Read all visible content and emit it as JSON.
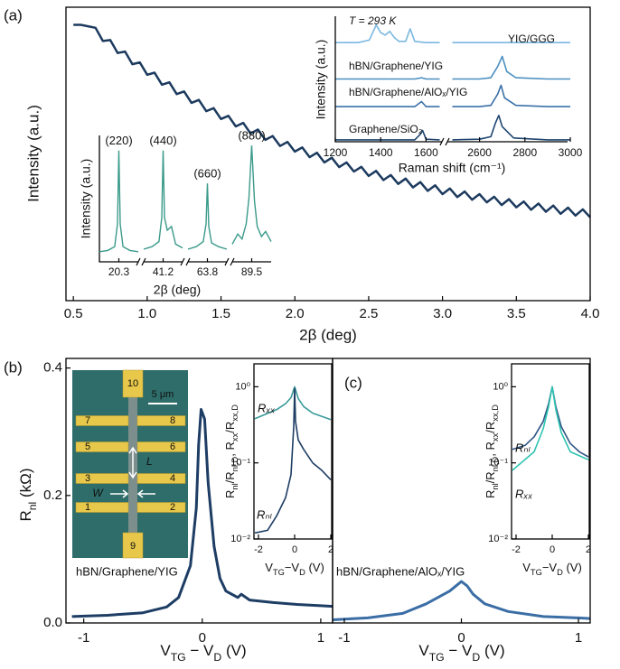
{
  "chart_data": [
    {
      "type": "line",
      "panel_label": "(a)",
      "xlabel": "2β (deg)",
      "ylabel": "Intensity (a.u.)",
      "color": "#1c3a5e",
      "xlim": [
        0.45,
        4.0
      ],
      "ylim": [
        0,
        100
      ],
      "xticks": [
        0.5,
        {
          "value": 1,
          "label": "1.0"
        },
        1.5,
        {
          "value": 2,
          "label": "2.0"
        },
        2.5,
        {
          "value": 3,
          "label": "3.0"
        },
        3.5,
        {
          "value": 4,
          "label": "4.0"
        }
      ],
      "x": [
        0.5,
        0.55,
        0.6,
        0.65,
        0.7,
        0.75,
        0.8,
        0.85,
        0.9,
        0.95,
        1.0,
        1.05,
        1.1,
        1.15,
        1.2,
        1.25,
        1.3,
        1.35,
        1.4,
        1.45,
        1.5,
        1.55,
        1.6,
        1.65,
        1.7,
        1.75,
        1.8,
        1.85,
        1.9,
        1.95,
        2.0,
        2.05,
        2.1,
        2.15,
        2.2,
        2.25,
        2.3,
        2.35,
        2.4,
        2.45,
        2.5,
        2.55,
        2.6,
        2.65,
        2.7,
        2.75,
        2.8,
        2.85,
        2.9,
        2.95,
        3.0,
        3.05,
        3.1,
        3.15,
        3.2,
        3.25,
        3.3,
        3.35,
        3.4,
        3.45,
        3.5,
        3.55,
        3.6,
        3.65,
        3.7,
        3.75,
        3.8,
        3.85,
        3.9,
        3.95,
        4.0
      ],
      "values": [
        94,
        94,
        93.5,
        93.0,
        88.5,
        88.8,
        84.4,
        84.9,
        80.6,
        81.2,
        77.0,
        77.7,
        73.6,
        74.4,
        70.4,
        71.3,
        67.4,
        68.4,
        64.6,
        65.6,
        61.9,
        63.0,
        59.4,
        60.6,
        57.0,
        58.3,
        54.8,
        56.1,
        52.7,
        54.1,
        50.8,
        52.2,
        48.9,
        50.4,
        47.1,
        48.7,
        45.5,
        47.1,
        44.0,
        45.6,
        42.5,
        44.2,
        41.1,
        42.8,
        39.8,
        41.6,
        38.6,
        40.4,
        37.4,
        39.3,
        36.3,
        38.2,
        35.3,
        37.2,
        34.4,
        36.3,
        33.5,
        35.4,
        32.6,
        34.6,
        31.8,
        33.8,
        31.0,
        33.1,
        30.3,
        32.4,
        29.6,
        31.7,
        29.0,
        31.1,
        28.4
      ]
    },
    {
      "type": "segmented",
      "xlabel": "2β (deg)",
      "ylabel": "Intensity (a.u.)",
      "color": "#3a9a8a",
      "ylim": [
        0,
        100
      ],
      "segments": [
        {
          "label": "(220)",
          "tick": 20.3,
          "x": [
            18.9,
            19.5,
            20.0,
            20.2,
            20.3,
            20.4,
            20.6,
            21.1,
            21.7
          ],
          "values": [
            8,
            9,
            12,
            30,
            88,
            30,
            12,
            9,
            8
          ]
        },
        {
          "label": "(440)",
          "tick": 41.2,
          "x": [
            39.8,
            40.4,
            40.9,
            41.1,
            41.2,
            41.3,
            41.5,
            41.8,
            42.1,
            42.6
          ],
          "values": [
            10,
            12,
            16,
            35,
            88,
            35,
            25,
            28,
            14,
            11
          ]
        },
        {
          "label": "(660)",
          "tick": 63.8,
          "x": [
            62.4,
            63.0,
            63.5,
            63.7,
            63.8,
            63.9,
            64.1,
            64.6,
            65.2
          ],
          "values": [
            10,
            12,
            16,
            30,
            62,
            28,
            15,
            12,
            10
          ]
        },
        {
          "label": "(880)",
          "tick": 89.5,
          "x": [
            88.1,
            88.5,
            88.8,
            89.1,
            89.3,
            89.5,
            89.7,
            89.9,
            90.2,
            90.5,
            90.9
          ],
          "values": [
            14,
            22,
            18,
            30,
            50,
            92,
            48,
            28,
            20,
            24,
            16
          ]
        }
      ]
    },
    {
      "type": "line",
      "annotation": "T = 293 K",
      "xlabel": "Raman shift (cm⁻¹)",
      "ylabel": "Intensity (a.u.)",
      "xlim": [
        1200,
        3000
      ],
      "xbreak": [
        1670,
        2470
      ],
      "ylim": [
        0,
        100
      ],
      "xticks": [
        1200,
        1400,
        1600,
        2600,
        2800,
        3000
      ],
      "series": [
        {
          "name": "YIG/GGG",
          "color": "#7ab8e0",
          "x": [
            1200,
            1300,
            1350,
            1380,
            1400,
            1420,
            1440,
            1460,
            1480,
            1510,
            1530,
            1550,
            1600,
            1660,
            2000,
            2480,
            2600,
            2800,
            3000
          ],
          "values": [
            79,
            79,
            81,
            93,
            87,
            85,
            88,
            83,
            80,
            80,
            90,
            80,
            79,
            79,
            null,
            79,
            79,
            79,
            79
          ]
        },
        {
          "name": "hBN/Graphene/YIG",
          "color": "#4a8fc0",
          "x": [
            1200,
            1400,
            1550,
            1580,
            1600,
            1660,
            2000,
            2480,
            2600,
            2650,
            2680,
            2700,
            2720,
            2760,
            2900,
            3000
          ],
          "values": [
            50,
            50,
            50,
            51,
            50,
            50,
            null,
            50,
            50,
            51,
            60,
            68,
            56,
            51,
            50,
            50
          ]
        },
        {
          "name": "hBN/Graphene/AlOₓ/YIG",
          "color": "#3a70a8",
          "x": [
            1200,
            1400,
            1550,
            1580,
            1600,
            1660,
            2000,
            2480,
            2600,
            2650,
            2680,
            2695,
            2710,
            2760,
            2900,
            3000
          ],
          "values": [
            28,
            28,
            28,
            32,
            28,
            28,
            null,
            28,
            28,
            29,
            38,
            45,
            35,
            29,
            28,
            28
          ]
        },
        {
          "name": "Graphene/SiO₂",
          "color": "#1f4570",
          "x": [
            1200,
            1400,
            1550,
            1575,
            1585,
            1600,
            1660,
            2000,
            2480,
            2600,
            2650,
            2670,
            2685,
            2700,
            2750,
            2900,
            3000
          ],
          "values": [
            1.5,
            1.5,
            1.5,
            6,
            9,
            2,
            1.5,
            null,
            1.5,
            2,
            4,
            15,
            21,
            12,
            3,
            1.5,
            1.5
          ]
        }
      ]
    },
    {
      "type": "line",
      "panel_label": "(b)",
      "caption": "hBN/Graphene/YIG",
      "xlabel": [
        "V",
        "TG",
        " − V",
        "D",
        " (V)"
      ],
      "ylabel": [
        "R",
        "nl",
        " (kΩ)"
      ],
      "color": "#1e3d64",
      "xlim": [
        -1.15,
        1.1
      ],
      "ylim": [
        0,
        0.415
      ],
      "xticks": [
        -1,
        0,
        1
      ],
      "yticks": [
        {
          "value": 0,
          "label": "0.0"
        },
        0.2,
        0.4
      ],
      "x": [
        -1.1,
        -0.8,
        -0.5,
        -0.3,
        -0.2,
        -0.1,
        -0.05,
        -0.03,
        -0.01,
        0.02,
        0.05,
        0.1,
        0.15,
        0.2,
        0.3,
        0.33,
        0.4,
        0.6,
        0.8,
        1.0,
        1.1
      ],
      "values": [
        0.01,
        0.012,
        0.016,
        0.025,
        0.04,
        0.09,
        0.18,
        0.28,
        0.335,
        0.32,
        0.22,
        0.12,
        0.07,
        0.05,
        0.04,
        0.045,
        0.036,
        0.032,
        0.029,
        0.027,
        0.026
      ]
    },
    {
      "type": "line",
      "log_y": true,
      "xlabel": [
        "V",
        "TG",
        "−V",
        "D",
        " (V)"
      ],
      "ylabel": [
        "R",
        "nl",
        "/R",
        "nl,D",
        ", R",
        "xx",
        "/R",
        "xx,D"
      ],
      "xlim": [
        -2.25,
        2.05
      ],
      "ylim": [
        0.01,
        2
      ],
      "xticks": [
        -2,
        0,
        2
      ],
      "yticks": [
        {
          "value": 1,
          "label": "10⁰"
        },
        {
          "value": 0.1,
          "label": "10⁻¹"
        },
        {
          "value": 0.01,
          "label": "10⁻²"
        }
      ],
      "series": [
        {
          "name": "Rₓₓ",
          "color": "#3a9a9a",
          "x": [
            -2.2,
            -1,
            -0.5,
            -0.2,
            0,
            0.2,
            0.5,
            1,
            2
          ],
          "values": [
            0.38,
            0.5,
            0.6,
            0.72,
            1.0,
            0.7,
            0.55,
            0.45,
            0.37
          ]
        },
        {
          "name": "Rₙₗ",
          "color": "#1e3d64",
          "x": [
            -2.2,
            -1.5,
            -1,
            -0.5,
            -0.2,
            -0.05,
            0,
            0.05,
            0.2,
            0.5,
            1,
            1.5,
            2
          ],
          "values": [
            0.012,
            0.013,
            0.02,
            0.035,
            0.07,
            0.3,
            0.95,
            0.35,
            0.2,
            0.15,
            0.1,
            0.08,
            0.06
          ]
        }
      ]
    },
    {
      "type": "line",
      "panel_label": "(c)",
      "caption": "hBN/Graphene/AlOₓ/YIG",
      "xlabel": [
        "V",
        "TG",
        " − V",
        "D",
        " (V)"
      ],
      "color": "#3b6ea5",
      "xlim": [
        -1.1,
        1.1
      ],
      "ylim": [
        0,
        0.415
      ],
      "xticks": [
        -1,
        0,
        1
      ],
      "x": [
        -1.1,
        -0.8,
        -0.5,
        -0.3,
        -0.1,
        -0.02,
        0,
        0.05,
        0.1,
        0.2,
        0.4,
        0.7,
        1.0,
        1.1
      ],
      "values": [
        0.005,
        0.008,
        0.015,
        0.03,
        0.05,
        0.062,
        0.065,
        0.058,
        0.045,
        0.03,
        0.018,
        0.01,
        0.008,
        0.007
      ]
    },
    {
      "type": "line",
      "log_y": true,
      "xlabel": [
        "V",
        "TG",
        "−V",
        "D",
        " (V)"
      ],
      "ylabel": [
        "R",
        "nl",
        "/R",
        "nl,D",
        ", R",
        "xx",
        "/R",
        "xx,D"
      ],
      "xlim": [
        -2.25,
        2.05
      ],
      "ylim": [
        0.01,
        2
      ],
      "xticks": [
        -2,
        0,
        2
      ],
      "yticks": [
        {
          "value": 1,
          "label": "10⁰"
        },
        {
          "value": 0.1,
          "label": "10⁻¹"
        },
        {
          "value": 0.01,
          "label": "10⁻²"
        }
      ],
      "series": [
        {
          "name": "Rₙₗ",
          "color": "#2f5585",
          "x": [
            -2.2,
            -1.5,
            -1,
            -0.5,
            -0.2,
            0,
            0.2,
            0.5,
            1,
            1.5,
            2
          ],
          "values": [
            0.15,
            0.17,
            0.22,
            0.35,
            0.6,
            1.0,
            0.55,
            0.3,
            0.18,
            0.14,
            0.12
          ]
        },
        {
          "name": "Rₓₓ",
          "color": "#2ec4b0",
          "x": [
            -2.2,
            -1,
            -0.5,
            -0.2,
            0,
            0.2,
            0.5,
            1,
            2
          ],
          "values": [
            0.08,
            0.14,
            0.28,
            0.55,
            1.0,
            0.5,
            0.25,
            0.14,
            0.11
          ]
        }
      ]
    }
  ],
  "micrograph": {
    "contacts": [
      "10",
      "7",
      "8",
      "5",
      "6",
      "3",
      "4",
      "1",
      "2",
      "9"
    ],
    "scale_bar": "5 μm",
    "length_label": "L",
    "width_label": "W"
  }
}
